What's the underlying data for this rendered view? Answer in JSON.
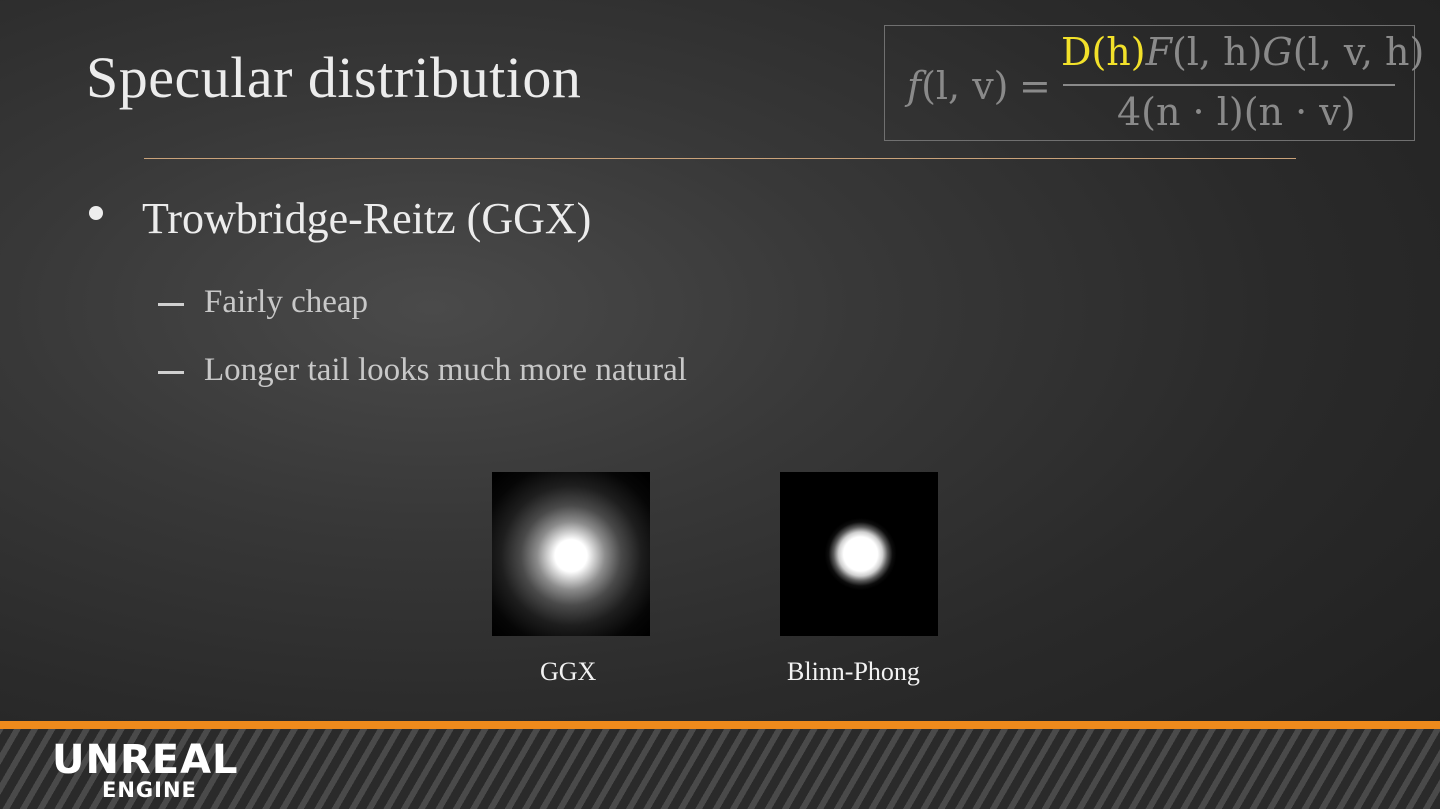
{
  "slide": {
    "title": "Specular distribution",
    "formula": {
      "lhs_f": "f",
      "lhs_args": "(l, v)",
      "equals": "=",
      "num_highlight": "D(h)",
      "num_rest_1": "F",
      "num_rest_2": "(l, h)",
      "num_rest_3": "G",
      "num_rest_4": "(l, v, h)",
      "denominator": "4(n · l)(n · v)",
      "highlight_color": "#f2e12a"
    },
    "bullet": "Trowbridge-Reitz (GGX)",
    "subbullets": [
      "Fairly cheap",
      "Longer tail looks much more natural"
    ],
    "images": [
      {
        "caption": "GGX"
      },
      {
        "caption": "Blinn-Phong"
      }
    ],
    "logo": {
      "main": "UNREAL",
      "sub": "ENGINE"
    },
    "accent_color": "#ee8a1c"
  }
}
